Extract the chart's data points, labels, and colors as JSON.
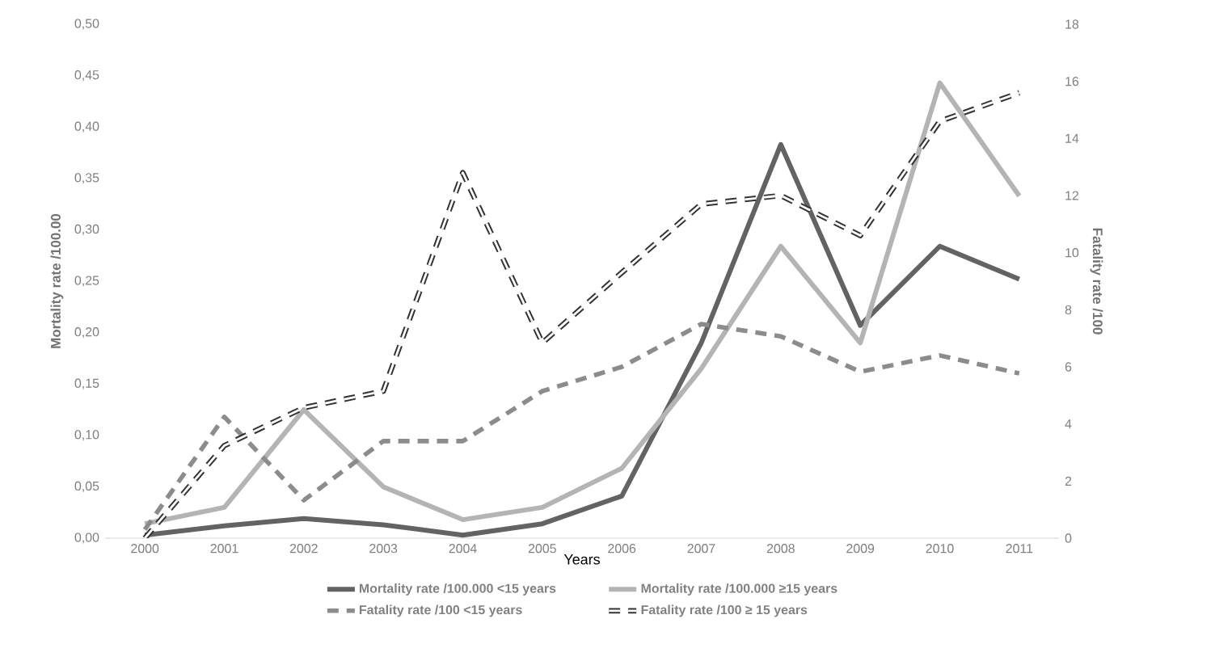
{
  "chart_data": {
    "type": "line",
    "xlabel": "Years",
    "ylabel": "Mortality rate /100.00",
    "y2label": "Fatality rate /100",
    "categories": [
      "2000",
      "2001",
      "2002",
      "2003",
      "2004",
      "2005",
      "2006",
      "2007",
      "2008",
      "2009",
      "2010",
      "2011"
    ],
    "series": [
      {
        "name": "Mortality rate /100.000 <15 years",
        "color": "#636363",
        "line_style": "solid",
        "values": [
          0.003,
          0.012,
          0.019,
          0.013,
          0.003,
          0.014,
          0.041,
          0.19,
          0.383,
          0.207,
          0.284,
          0.252
        ]
      },
      {
        "name": "Mortality rate /100.000 ≥15 years",
        "color": "#b4b4b4",
        "line_style": "solid",
        "values": [
          0.014,
          0.03,
          0.125,
          0.05,
          0.018,
          0.03,
          0.068,
          0.165,
          0.284,
          0.19,
          0.443,
          0.333
        ]
      },
      {
        "name": "Fatality rate /100 <15 years",
        "color": "#8c8c8c",
        "line_style": "dashed",
        "axis": "y2",
        "values": [
          0.3,
          4.25,
          1.33,
          3.4,
          3.4,
          5.15,
          6.0,
          7.5,
          7.07,
          5.83,
          6.4,
          5.77
        ]
      },
      {
        "name": "Fatality rate /100 ≥ 15 years",
        "color": "#333333",
        "line_style": "dashed",
        "axis": "y2",
        "values": [
          0,
          3.24,
          4.57,
          5.15,
          12.8,
          6.84,
          9.3,
          11.7,
          12.0,
          10.6,
          14.6,
          15.6
        ]
      }
    ],
    "ylim": [
      0,
      0.5
    ],
    "yticks": [
      {
        "value": 0,
        "label": "0,00"
      },
      {
        "value": 0.05,
        "label": "0,05"
      },
      {
        "value": 0.1,
        "label": "0,10"
      },
      {
        "value": 0.15,
        "label": "0,15"
      },
      {
        "value": 0.2,
        "label": "0,20"
      },
      {
        "value": 0.25,
        "label": "0,25"
      },
      {
        "value": 0.3,
        "label": "0,30"
      },
      {
        "value": 0.35,
        "label": "0,35"
      },
      {
        "value": 0.4,
        "label": "0,40"
      },
      {
        "value": 0.45,
        "label": "0,45"
      },
      {
        "value": 0.5,
        "label": "0,50"
      }
    ],
    "y2lim": [
      0,
      18
    ],
    "y2ticks": [
      0,
      2,
      4,
      6,
      8,
      10,
      12,
      14,
      16,
      18
    ],
    "legend": "bottom",
    "marker": "none",
    "grid": false
  }
}
